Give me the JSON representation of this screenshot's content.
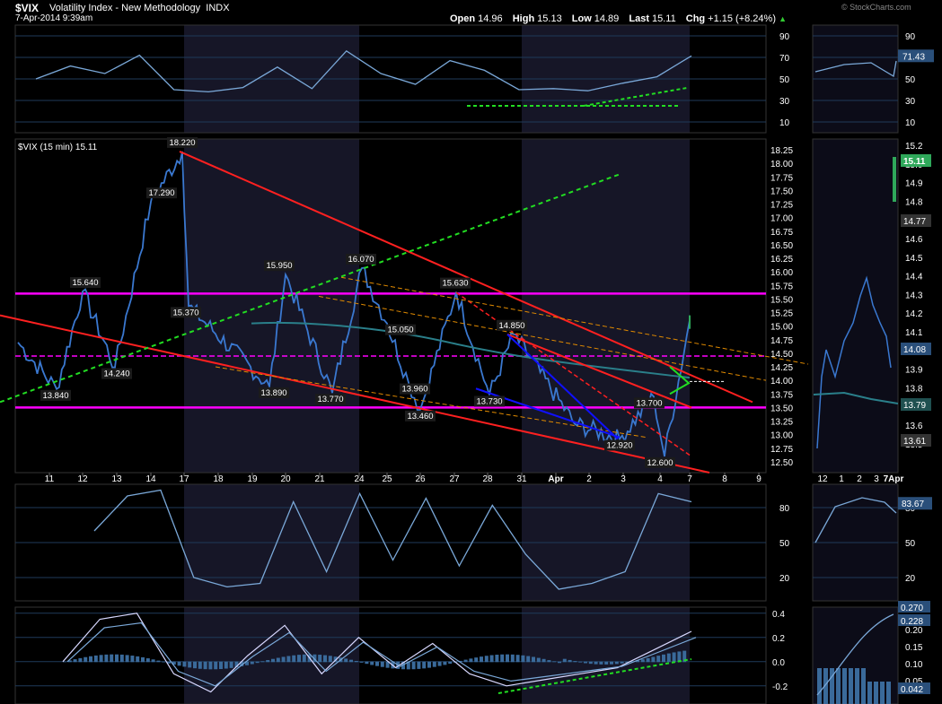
{
  "header": {
    "symbol": "$VIX",
    "name": "Volatility Index - New Methodology",
    "exchange": "INDX",
    "date": "7-Apr-2014 9:39am",
    "brand": "© StockCharts.com",
    "ohlc": {
      "open_label": "Open",
      "open": "14.96",
      "high_label": "High",
      "high": "15.13",
      "low_label": "Low",
      "low": "14.89",
      "last_label": "Last",
      "last": "15.11",
      "chg_label": "Chg",
      "chg": "+1.15 (+8.24%)",
      "up_glyph": "▲"
    }
  },
  "colors": {
    "price": "#3a78d0",
    "indicator": "#7aa8d8",
    "magenta": "#ff00ff",
    "trend_red": "#ff2020",
    "trend_green": "#22dd22",
    "trend_orange": "#e08a00",
    "wedge_blue": "#1010ff",
    "grid": "#1f3a5a",
    "shade": "#161627",
    "axis_text": "#ffffff"
  },
  "chart_data": [
    {
      "panel": "RSI",
      "type": "line",
      "y_ticks": [
        90,
        70,
        50,
        30,
        10
      ],
      "ylim": [
        0,
        100
      ],
      "last_label": "71.43",
      "x": [
        "11",
        "12",
        "13",
        "14",
        "17",
        "18",
        "19",
        "20",
        "21",
        "24",
        "25",
        "26",
        "27",
        "28",
        "31",
        "1",
        "2",
        "3",
        "4",
        "7"
      ],
      "values": [
        50,
        62,
        55,
        72,
        40,
        38,
        42,
        61,
        41,
        76,
        55,
        45,
        67,
        58,
        40,
        41,
        39,
        46,
        52,
        71.43
      ]
    },
    {
      "panel": "price",
      "type": "line",
      "legend": "$VIX (15 min) 15.11",
      "ylim": [
        12.3,
        18.45
      ],
      "y_ticks": [
        18.25,
        18.0,
        17.75,
        17.5,
        17.25,
        17.0,
        16.75,
        16.5,
        16.25,
        16.0,
        15.75,
        15.5,
        15.25,
        15.0,
        14.75,
        14.5,
        14.25,
        14.0,
        13.75,
        13.5,
        13.25,
        13.0,
        12.75,
        12.5
      ],
      "x_labels": [
        "11",
        "12",
        "13",
        "14",
        "17",
        "18",
        "19",
        "20",
        "21",
        "24",
        "25",
        "26",
        "27",
        "28",
        "31",
        "Apr",
        "2",
        "3",
        "4",
        "7",
        "8",
        "9"
      ],
      "points": [
        {
          "x": "11",
          "y": 13.84
        },
        {
          "x": "12",
          "y": 15.64
        },
        {
          "x": "13",
          "y": 14.24
        },
        {
          "x": "14",
          "y": 17.29
        },
        {
          "x": "17",
          "y": 18.22
        },
        {
          "x": "18",
          "y": 15.37
        },
        {
          "x": "19",
          "y": 13.89
        },
        {
          "x": "20",
          "y": 15.95
        },
        {
          "x": "21",
          "y": 13.77
        },
        {
          "x": "24",
          "y": 16.07
        },
        {
          "x": "25",
          "y": 15.05
        },
        {
          "x": "26",
          "y": 13.96
        },
        {
          "x": "26",
          "y": 13.46
        },
        {
          "x": "27",
          "y": 15.63
        },
        {
          "x": "28",
          "y": 13.73
        },
        {
          "x": "31",
          "y": 14.85
        },
        {
          "x": "2",
          "y": 13.2
        },
        {
          "x": "3",
          "y": 12.92
        },
        {
          "x": "4",
          "y": 13.7
        },
        {
          "x": "4",
          "y": 12.6
        },
        {
          "x": "7",
          "y": 15.11
        }
      ],
      "data_labels": [
        "18.220",
        "17.290",
        "15.640",
        "15.950",
        "16.070",
        "15.630",
        "14.850",
        "15.370",
        "15.050",
        "14.240",
        "13.840",
        "13.890",
        "13.770",
        "13.960",
        "13.460",
        "13.730",
        "13.700",
        "12.920",
        "12.600"
      ],
      "horizontal_lines": [
        15.6,
        14.45,
        13.5
      ],
      "inset_y_ticks": [
        "15.2",
        "15.0",
        "14.9",
        "14.8",
        "14.7",
        "14.6",
        "14.5",
        "14.4",
        "14.3",
        "14.2",
        "14.1",
        "14.0",
        "13.9",
        "13.8",
        "13.7",
        "13.6",
        "13.5"
      ],
      "inset_labels": [
        "15.11",
        "14.77",
        "14.08",
        "13.79",
        "13.61"
      ],
      "inset_x_labels": [
        "12",
        "1",
        "2",
        "3",
        "7Apr"
      ]
    },
    {
      "panel": "stochastic",
      "type": "line",
      "y_ticks": [
        80,
        50,
        20
      ],
      "ylim": [
        0,
        100
      ],
      "last_label": "83.67",
      "values": [
        60,
        90,
        95,
        20,
        12,
        15,
        85,
        25,
        92,
        35,
        88,
        30,
        82,
        40,
        10,
        15,
        25,
        92,
        85
      ]
    },
    {
      "panel": "MACD",
      "type": "line",
      "y_ticks": [
        "0.4",
        "0.2",
        "0.0",
        "-0.2"
      ],
      "ylim": [
        -0.35,
        0.45
      ],
      "inset_y_ticks": [
        "0.20",
        "0.15",
        "0.10",
        "0.05"
      ],
      "inset_labels": [
        "0.270",
        "0.228",
        "0.042"
      ],
      "values": [
        0.0,
        0.35,
        0.4,
        -0.1,
        -0.25,
        0.05,
        0.3,
        -0.1,
        0.2,
        -0.05,
        0.15,
        -0.1,
        -0.2,
        -0.15,
        -0.1,
        -0.05,
        0.1,
        0.25
      ]
    }
  ]
}
